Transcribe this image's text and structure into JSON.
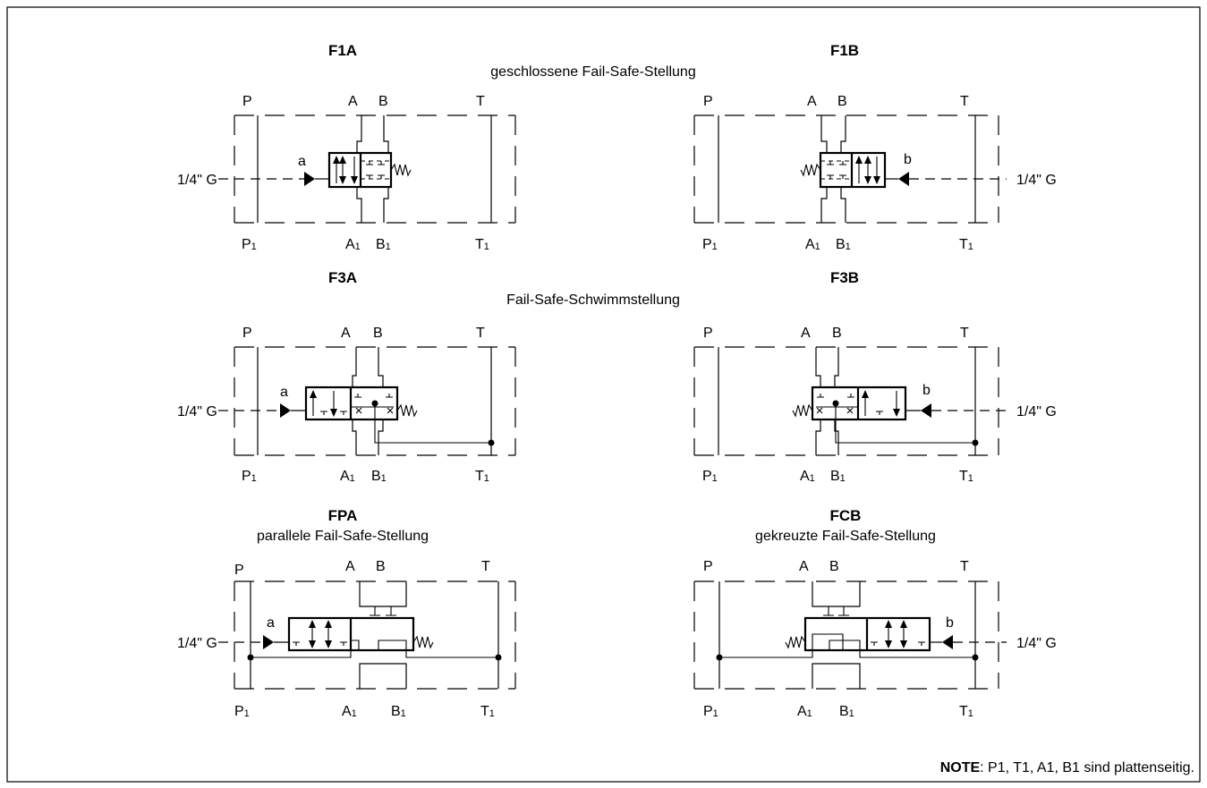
{
  "titles": {
    "f1a": "F1A",
    "f1b": "F1B",
    "f3a": "F3A",
    "f3b": "F3B",
    "fpa": "FPA",
    "fcb": "FCB"
  },
  "subtitles": {
    "row1": "geschlossene Fail-Safe-Stellung",
    "row2": "Fail-Safe-Schwimmstellung",
    "fpa": "parallele Fail-Safe-Stellung",
    "fcb": "gekreuzte Fail-Safe-Stellung"
  },
  "ports": {
    "p": "P",
    "a": "A",
    "b": "B",
    "t": "T",
    "p1": "P",
    "a1": "A",
    "b1": "B",
    "t1": "T",
    "subscript": "1"
  },
  "pilot": {
    "a": "a",
    "b": "b",
    "thread": "1/4\" G"
  },
  "note": {
    "label": "NOTE",
    "text": ": P1, T1, A1, B1 sind plattenseitig."
  }
}
